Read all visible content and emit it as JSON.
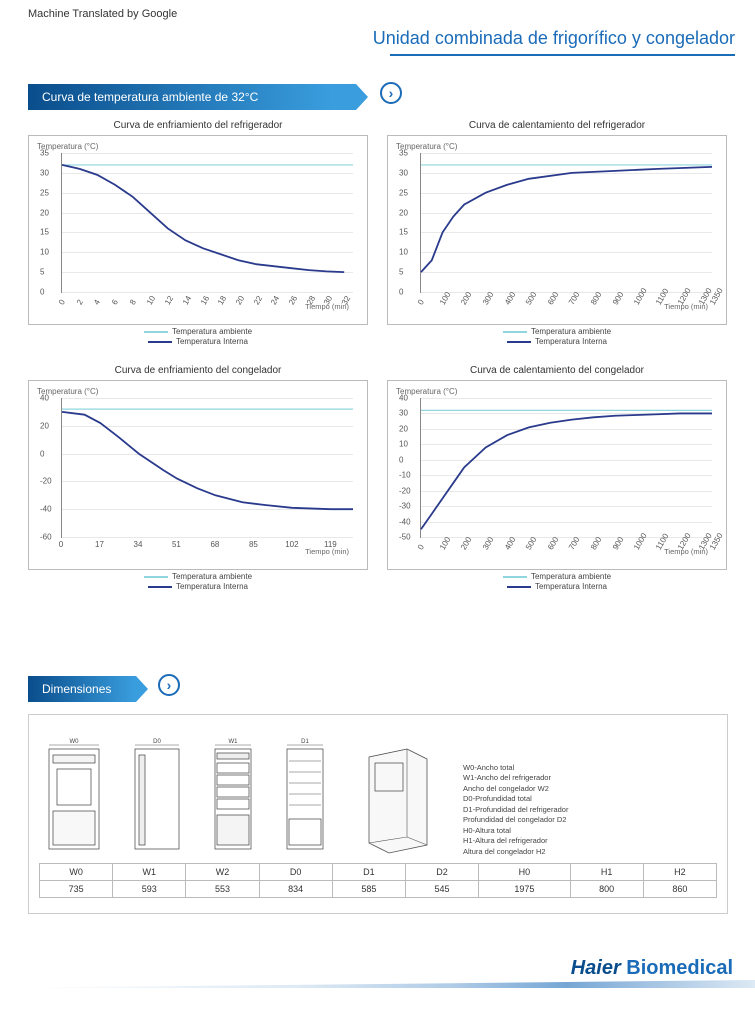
{
  "meta": {
    "translated_note": "Machine Translated by Google"
  },
  "page_title": "Unidad combinada de frigorífico y congelador",
  "section1_title": "Curva de temperatura ambiente de 32°C",
  "section2_title": "Dimensiones",
  "legend": {
    "ambient": "Temperatura ambiente",
    "internal": "Temperatura Interna"
  },
  "axis_labels": {
    "y": "Temperatura (°C)",
    "x": "Tiempo (min)"
  },
  "colors": {
    "ambient_line": "#8fd6de",
    "internal_line": "#2a3a8c",
    "grid": "#e8e8e8",
    "border": "#bbbbbb",
    "accent": "#1a6bb8",
    "background": "#ffffff"
  },
  "charts": [
    {
      "title": "Curva de enfriamiento del refrigerador",
      "ylim": [
        0,
        35
      ],
      "ytick_step": 5,
      "xlim": [
        0,
        33
      ],
      "xticks": [
        0,
        2,
        4,
        6,
        8,
        10,
        12,
        14,
        16,
        18,
        20,
        22,
        24,
        26,
        28,
        30,
        32
      ],
      "rotated_xticks": true,
      "ambient_y": 32,
      "internal_points": [
        [
          0,
          32
        ],
        [
          2,
          31
        ],
        [
          4,
          29.5
        ],
        [
          6,
          27
        ],
        [
          8,
          24
        ],
        [
          10,
          20
        ],
        [
          12,
          16
        ],
        [
          14,
          13
        ],
        [
          16,
          11
        ],
        [
          18,
          9.5
        ],
        [
          20,
          8
        ],
        [
          22,
          7
        ],
        [
          24,
          6.5
        ],
        [
          26,
          6
        ],
        [
          28,
          5.5
        ],
        [
          30,
          5.2
        ],
        [
          32,
          5
        ]
      ]
    },
    {
      "title": "Curva de calentamiento del refrigerador",
      "ylim": [
        0,
        35
      ],
      "ytick_step": 5,
      "xlim": [
        0,
        1350
      ],
      "xticks": [
        0,
        100,
        200,
        300,
        400,
        500,
        600,
        700,
        800,
        900,
        1000,
        1100,
        1200,
        1300,
        1350
      ],
      "rotated_xticks": true,
      "ambient_y": 32,
      "internal_points": [
        [
          0,
          5
        ],
        [
          50,
          8
        ],
        [
          100,
          15
        ],
        [
          150,
          19
        ],
        [
          200,
          22
        ],
        [
          300,
          25
        ],
        [
          400,
          27
        ],
        [
          500,
          28.5
        ],
        [
          700,
          30
        ],
        [
          900,
          30.5
        ],
        [
          1100,
          31
        ],
        [
          1350,
          31.5
        ]
      ]
    },
    {
      "title": "Curva de enfriamiento del congelador",
      "ylim": [
        -60,
        40
      ],
      "ytick_step": 20,
      "xlim": [
        0,
        129
      ],
      "xticks": [
        0,
        17,
        34,
        51,
        68,
        85,
        102,
        119
      ],
      "rotated_xticks": false,
      "ambient_y": 32,
      "internal_points": [
        [
          0,
          30
        ],
        [
          10,
          28
        ],
        [
          17,
          22
        ],
        [
          25,
          12
        ],
        [
          34,
          0
        ],
        [
          45,
          -12
        ],
        [
          51,
          -18
        ],
        [
          60,
          -25
        ],
        [
          68,
          -30
        ],
        [
          80,
          -35
        ],
        [
          90,
          -37
        ],
        [
          102,
          -39
        ],
        [
          119,
          -40
        ],
        [
          129,
          -40
        ]
      ]
    },
    {
      "title": "Curva de calentamiento del congelador",
      "ylim": [
        -50,
        40
      ],
      "ytick_step": 10,
      "xlim": [
        0,
        1350
      ],
      "xticks": [
        0,
        100,
        200,
        300,
        400,
        500,
        600,
        700,
        800,
        900,
        1000,
        1100,
        1200,
        1300,
        1350
      ],
      "rotated_xticks": true,
      "ambient_y": 32,
      "internal_points": [
        [
          0,
          -45
        ],
        [
          50,
          -35
        ],
        [
          100,
          -25
        ],
        [
          150,
          -15
        ],
        [
          200,
          -5
        ],
        [
          300,
          8
        ],
        [
          400,
          16
        ],
        [
          500,
          21
        ],
        [
          600,
          24
        ],
        [
          700,
          26
        ],
        [
          800,
          27.5
        ],
        [
          900,
          28.5
        ],
        [
          1000,
          29
        ],
        [
          1100,
          29.5
        ],
        [
          1200,
          30
        ],
        [
          1350,
          30
        ]
      ]
    }
  ],
  "dimensions": {
    "labels": [
      "W0-Ancho total",
      "W1-Ancho del refrigerador",
      "Ancho del congelador W2",
      "D0-Profundidad total",
      "D1-Profundidad del refrigerador",
      "Profundidad del congelador D2",
      "H0-Altura total",
      "H1-Altura del refrigerador",
      "Altura del congelador H2"
    ],
    "dim_symbols": [
      "W0",
      "D0",
      "W1",
      "D1"
    ],
    "columns": [
      "W0",
      "W1",
      "W2",
      "D0",
      "D1",
      "D2",
      "H0",
      "H1",
      "H2"
    ],
    "rows": [
      [
        "735",
        "593",
        "553",
        "834",
        "585",
        "545",
        "1975",
        "800",
        "860"
      ]
    ]
  },
  "brand": {
    "part1": "Haier",
    "part2": "Biomedical"
  }
}
